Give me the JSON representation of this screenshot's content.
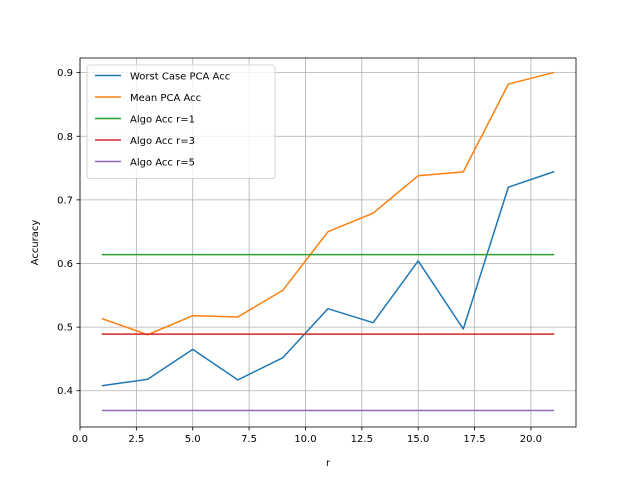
{
  "chart_data": {
    "type": "line",
    "title": "",
    "xlabel": "r",
    "ylabel": "Accuracy",
    "xlim": [
      0.0,
      22.0
    ],
    "ylim": [
      0.343,
      0.923
    ],
    "xticks": [
      0.0,
      2.5,
      5.0,
      7.5,
      10.0,
      12.5,
      15.0,
      17.5,
      20.0
    ],
    "xtick_labels": [
      "0.0",
      "2.5",
      "5.0",
      "7.5",
      "10.0",
      "12.5",
      "15.0",
      "17.5",
      "20.0"
    ],
    "yticks": [
      0.4,
      0.5,
      0.6,
      0.7,
      0.8,
      0.9
    ],
    "ytick_labels": [
      "0.4",
      "0.5",
      "0.6",
      "0.7",
      "0.8",
      "0.9"
    ],
    "grid": true,
    "legend_position": "top-left",
    "x": [
      1,
      3,
      5,
      7,
      9,
      11,
      13,
      15,
      17,
      19,
      21
    ],
    "series": [
      {
        "name": "Worst Case PCA Acc",
        "color": "#1f77b4",
        "values": [
          0.408,
          0.418,
          0.465,
          0.417,
          0.452,
          0.529,
          0.507,
          0.604,
          0.497,
          0.72,
          0.744
        ]
      },
      {
        "name": "Mean PCA Acc",
        "color": "#ff7f0e",
        "values": [
          0.513,
          0.488,
          0.518,
          0.516,
          0.558,
          0.65,
          0.679,
          0.738,
          0.744,
          0.882,
          0.9
        ]
      },
      {
        "name": "Algo Acc r=1",
        "color": "#2ca02c",
        "values": [
          0.614,
          0.614,
          0.614,
          0.614,
          0.614,
          0.614,
          0.614,
          0.614,
          0.614,
          0.614,
          0.614
        ]
      },
      {
        "name": "Algo Acc r=3",
        "color": "#d62728",
        "values": [
          0.489,
          0.489,
          0.489,
          0.489,
          0.489,
          0.489,
          0.489,
          0.489,
          0.489,
          0.489,
          0.489
        ]
      },
      {
        "name": "Algo Acc r=5",
        "color": "#9467bd",
        "values": [
          0.369,
          0.369,
          0.369,
          0.369,
          0.369,
          0.369,
          0.369,
          0.369,
          0.369,
          0.369,
          0.369
        ]
      }
    ]
  }
}
